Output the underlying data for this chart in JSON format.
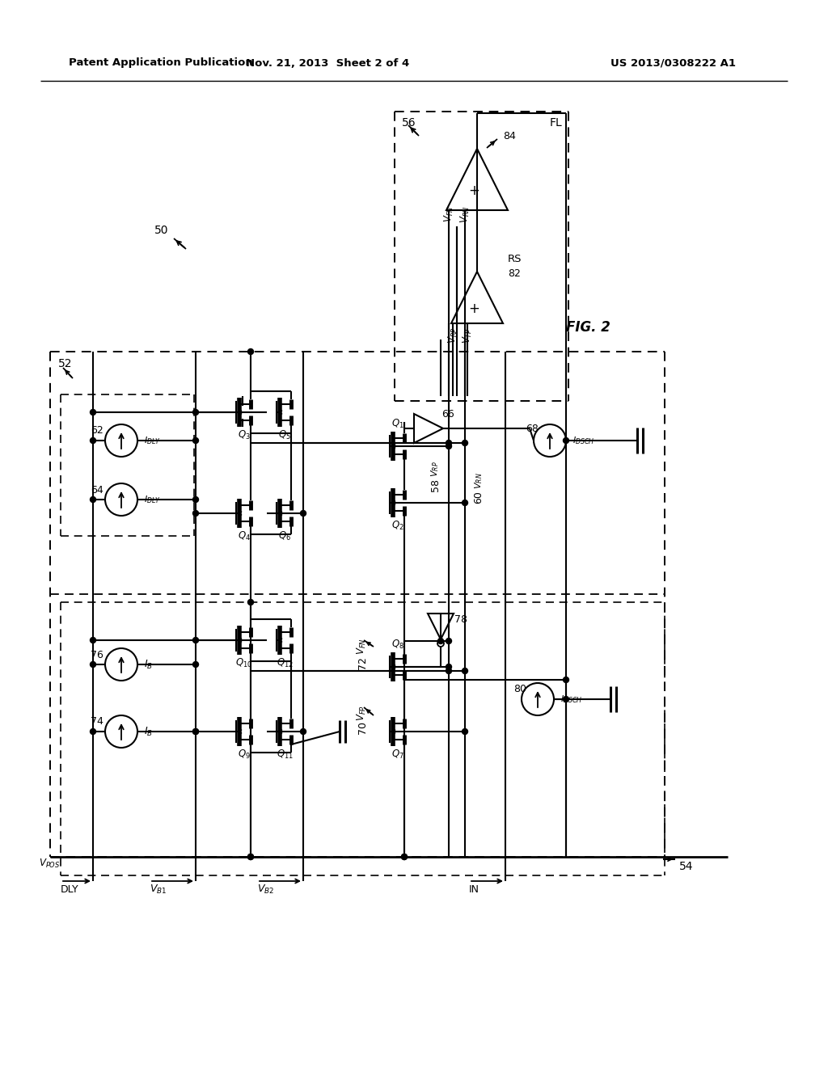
{
  "header_left": "Patent Application Publication",
  "header_center": "Nov. 21, 2013  Sheet 2 of 4",
  "header_right": "US 2013/0308222 A1",
  "fig_label": "FIG. 2",
  "bg": "#ffffff"
}
